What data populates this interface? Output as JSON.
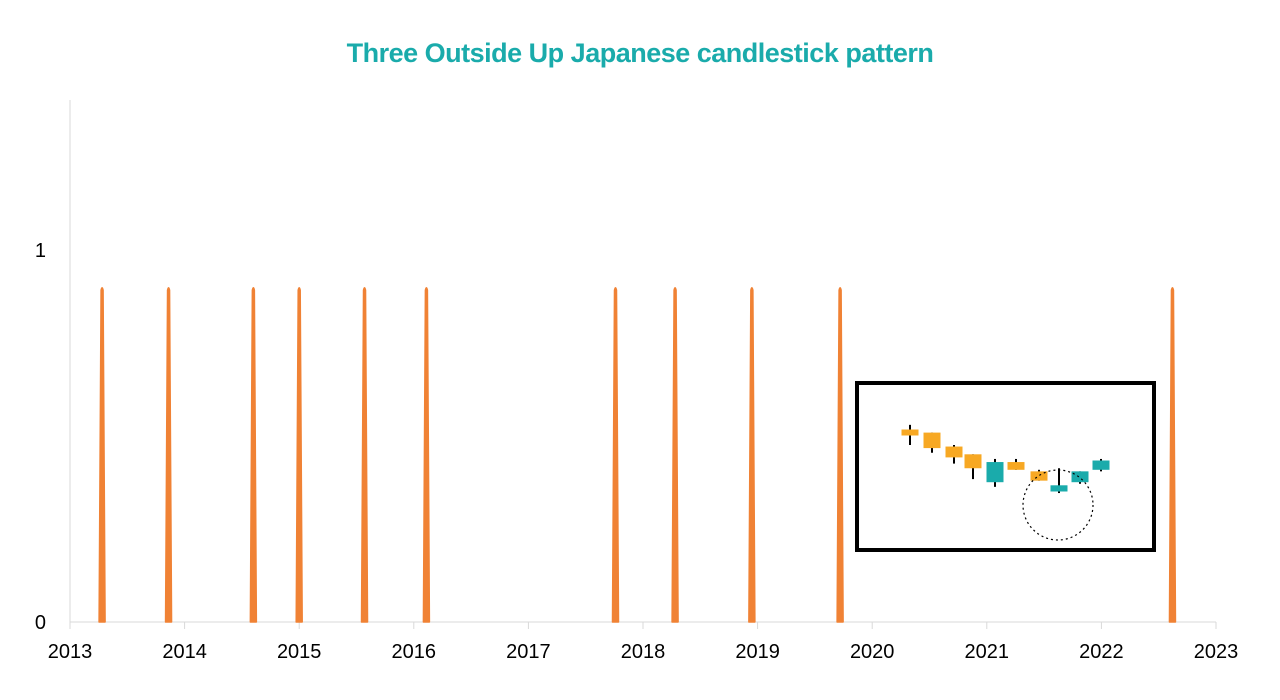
{
  "colors": {
    "title": "#1aabab",
    "series": "#f08235",
    "axis": "#d9d9d9",
    "bearish_candle": "#f7a823",
    "bullish_candle": "#1aabab",
    "wick": "#000000",
    "inset_border": "#000000"
  },
  "chart_data": {
    "type": "line",
    "title": "Three Outside Up Japanese candlestick pattern",
    "xlabel": "",
    "ylabel": "",
    "xlim": [
      2013,
      2023
    ],
    "ylim": [
      0,
      1
    ],
    "x_ticks": [
      "2013",
      "2014",
      "2015",
      "2016",
      "2017",
      "2018",
      "2019",
      "2020",
      "2021",
      "2022",
      "2023"
    ],
    "y_ticks": [
      "0",
      "1"
    ],
    "grid": false,
    "legend": "none",
    "series": [
      {
        "signal_dates": [
          2013.28,
          2013.86,
          2014.6,
          2015.0,
          2015.57,
          2016.11,
          2017.76,
          2018.28,
          2018.95,
          2019.72,
          2022.62
        ],
        "signal_value": 0.9
      }
    ],
    "inset": {
      "description_shape": "candlestick-pattern-illustration",
      "candles": [
        {
          "type": "bearish",
          "open": 0.7,
          "close": 0.67,
          "high": 0.73,
          "low": 0.6
        },
        {
          "type": "bearish",
          "open": 0.68,
          "close": 0.58,
          "high": 0.68,
          "low": 0.55
        },
        {
          "type": "bearish",
          "open": 0.59,
          "close": 0.52,
          "high": 0.6,
          "low": 0.48
        },
        {
          "type": "bearish",
          "open": 0.54,
          "close": 0.45,
          "high": 0.54,
          "low": 0.38
        },
        {
          "type": "bullish",
          "open": 0.36,
          "close": 0.49,
          "high": 0.51,
          "low": 0.33
        },
        {
          "type": "bearish",
          "open": 0.49,
          "close": 0.44,
          "high": 0.51,
          "low": 0.44
        },
        {
          "type": "bearish",
          "open": 0.43,
          "close": 0.37,
          "high": 0.44,
          "low": 0.37
        },
        {
          "type": "bullish",
          "open": 0.3,
          "close": 0.34,
          "high": 0.45,
          "low": 0.29
        },
        {
          "type": "bullish",
          "open": 0.36,
          "close": 0.43,
          "high": 0.43,
          "low": 0.35
        },
        {
          "type": "bullish",
          "open": 0.44,
          "close": 0.5,
          "high": 0.51,
          "low": 0.43
        }
      ],
      "highlight": "circle-around-candles-7-to-9"
    }
  }
}
